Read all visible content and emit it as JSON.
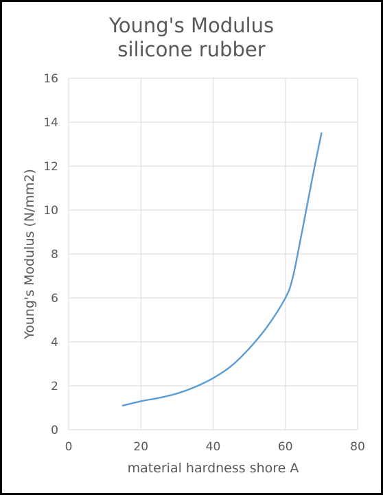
{
  "chart_data": {
    "type": "line",
    "title": "Young's Modulus",
    "subtitle": "silicone rubber",
    "xlabel": "material hardness shore A",
    "ylabel": "Young's Modulus (N/mm2)",
    "xlim": [
      0,
      80
    ],
    "ylim": [
      0,
      16
    ],
    "x_ticks": [
      "0",
      "20",
      "40",
      "60",
      "80"
    ],
    "y_ticks": [
      "0",
      "2",
      "4",
      "6",
      "8",
      "10",
      "12",
      "14",
      "16"
    ],
    "grid": true,
    "legend": "none",
    "series": [
      {
        "color": "#5b9bd5",
        "points": [
          [
            15,
            1.1
          ],
          [
            20,
            1.3
          ],
          [
            25,
            1.45
          ],
          [
            30,
            1.65
          ],
          [
            35,
            1.95
          ],
          [
            40,
            2.35
          ],
          [
            45,
            2.9
          ],
          [
            50,
            3.7
          ],
          [
            55,
            4.7
          ],
          [
            60,
            6.0
          ],
          [
            62,
            6.9
          ],
          [
            64,
            8.5
          ],
          [
            66,
            10.2
          ],
          [
            68,
            11.9
          ],
          [
            70,
            13.5
          ]
        ]
      }
    ]
  }
}
